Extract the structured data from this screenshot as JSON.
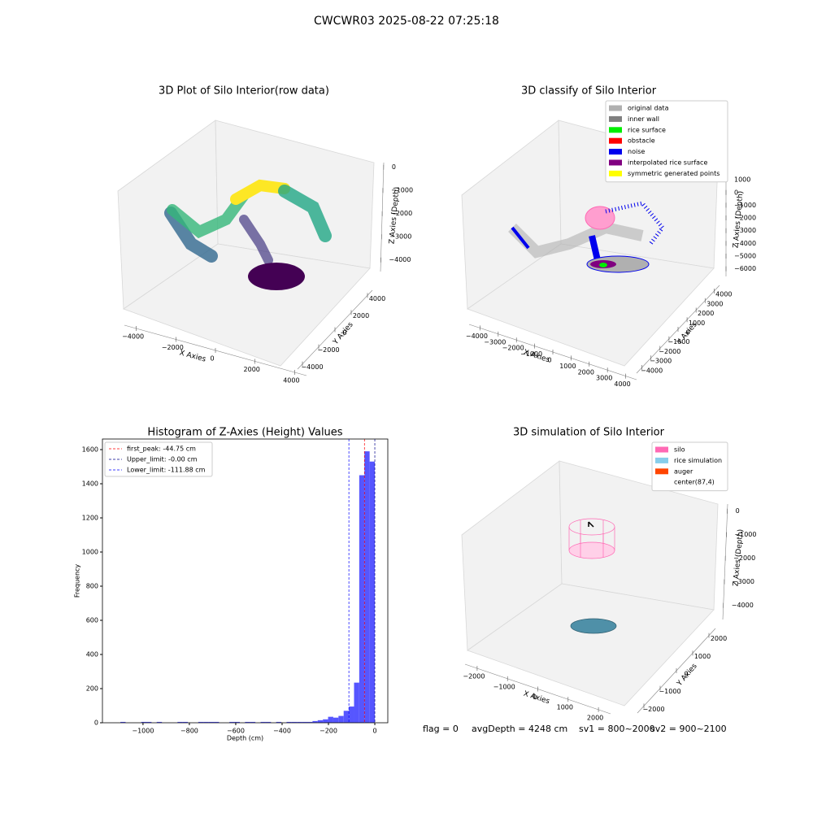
{
  "title": "CWCWR03 2025-08-22 07:25:18",
  "chart_data": [
    {
      "type": "scatter3d",
      "title": "3D Plot of Silo Interior(row data)",
      "xlabel": "X Axies",
      "ylabel": "Y Axies",
      "zlabel": "Z Axies (Depth)",
      "xlim": [
        -4600,
        4600
      ],
      "ylim": [
        -4600,
        4600
      ],
      "zlim": [
        -4500,
        200
      ],
      "xticks": [
        {
          "value": -4000,
          "label": "−4000"
        },
        {
          "value": -2000,
          "label": "−2000"
        },
        0,
        2000,
        4000
      ],
      "yticks": [
        {
          "value": -4000,
          "label": "−4000"
        },
        {
          "value": -2000,
          "label": "−2000"
        },
        0,
        2000,
        4000
      ],
      "zticks": [
        0,
        {
          "value": -1000,
          "label": "−1000"
        },
        {
          "value": -2000,
          "label": "−2000"
        },
        {
          "value": -3000,
          "label": "−3000"
        },
        {
          "value": -4000,
          "label": "−4000"
        }
      ]
    },
    {
      "type": "scatter3d",
      "title": "3D classify of Silo Interior",
      "xlabel": "X Axies",
      "ylabel": "Y Axies",
      "zlabel": "Z Axies (Depth)",
      "xlim": [
        -4600,
        4600
      ],
      "ylim": [
        -4600,
        4600
      ],
      "zlim": [
        -6600,
        1200
      ],
      "xticks": [
        {
          "value": -4000,
          "label": "−4000"
        },
        {
          "value": -3000,
          "label": "−3000"
        },
        {
          "value": -2000,
          "label": "−2000"
        },
        {
          "value": -1000,
          "label": "−1000"
        },
        0,
        1000,
        2000,
        3000,
        4000
      ],
      "yticks": [
        {
          "value": -4000,
          "label": "−4000"
        },
        {
          "value": -3000,
          "label": "−3000"
        },
        {
          "value": -2000,
          "label": "−2000"
        },
        {
          "value": -1000,
          "label": "−1000"
        },
        0,
        1000,
        2000,
        3000,
        4000
      ],
      "zticks": [
        1000,
        0,
        {
          "value": -1000,
          "label": "−1000"
        },
        {
          "value": -2000,
          "label": "−2000"
        },
        {
          "value": -3000,
          "label": "−3000"
        },
        {
          "value": -4000,
          "label": "−4000"
        },
        {
          "value": -5000,
          "label": "−5000"
        },
        {
          "value": -6000,
          "label": "−6000"
        }
      ],
      "legend": [
        {
          "name": "original data",
          "color": "#b0b0b0"
        },
        {
          "name": "inner wall",
          "color": "#808080"
        },
        {
          "name": "rice surface",
          "color": "#00ee00"
        },
        {
          "name": "obstacle",
          "color": "#ff0000"
        },
        {
          "name": "noise",
          "color": "#0000ee"
        },
        {
          "name": "interpolated rice surface",
          "color": "#800080"
        },
        {
          "name": "symmetric generated points",
          "color": "#ffff00"
        }
      ]
    },
    {
      "type": "histogram",
      "title": "Histogram of Z-Axies (Height) Values",
      "xlabel": "Depth (cm)",
      "ylabel": "Frequency",
      "color": "#4d4dff",
      "bins": [
        -1120,
        -1097.6,
        -1075.2,
        -1052.8,
        -1030.4,
        -1008,
        -985.6,
        -963.2,
        -940.8,
        -918.4,
        -896,
        -873.6,
        -851.2,
        -828.8,
        -806.4,
        -784,
        -761.6,
        -739.2,
        -716.8,
        -694.4,
        -672,
        -649.6,
        -627.2,
        -604.8,
        -582.4,
        -560,
        -537.6,
        -515.2,
        -492.8,
        -470.4,
        -448,
        -425.6,
        -403.2,
        -380.8,
        -358.4,
        -336,
        -313.6,
        -291.2,
        -268.8,
        -246.4,
        -224,
        -201.6,
        -179.2,
        -156.8,
        -134.4,
        -112,
        -89.6,
        -67.2,
        -44.8,
        -22.4,
        0
      ],
      "counts": [
        0,
        5,
        0,
        0,
        0,
        5,
        5,
        0,
        5,
        0,
        0,
        0,
        5,
        5,
        0,
        0,
        5,
        5,
        5,
        5,
        0,
        0,
        5,
        5,
        0,
        5,
        5,
        0,
        5,
        5,
        0,
        5,
        0,
        5,
        5,
        5,
        5,
        5,
        10,
        15,
        20,
        35,
        30,
        40,
        70,
        95,
        235,
        1450,
        1590,
        1530
      ],
      "xlim": [
        -1175,
        56
      ],
      "ylim": [
        0,
        1662
      ],
      "xticks": [
        {
          "value": -1000,
          "label": "−1000"
        },
        {
          "value": -800,
          "label": "−800"
        },
        {
          "value": -600,
          "label": "−600"
        },
        {
          "value": -400,
          "label": "−400"
        },
        {
          "value": -200,
          "label": "−200"
        },
        0
      ],
      "yticks": [
        0,
        200,
        400,
        600,
        800,
        1000,
        1200,
        1400,
        1600
      ],
      "lines": [
        {
          "name": "first_peak: -44.75 cm",
          "value": -44.75,
          "color": "#ff0000"
        },
        {
          "name": "Upper_limit: -0.00 cm",
          "value": 0,
          "color": "#00008b"
        },
        {
          "name": "Lower_limit: -111.88 cm",
          "value": -111.88,
          "color": "#0000ff"
        }
      ]
    },
    {
      "type": "scatter3d",
      "title": "3D simulation of Silo Interior",
      "xlabel": "X Axies",
      "ylabel": "Y Axies",
      "zlabel": "Z Axies (Depth)",
      "xlim": [
        -2400,
        2400
      ],
      "ylim": [
        -2400,
        2400
      ],
      "zlim": [
        -4600,
        300
      ],
      "xticks": [
        {
          "value": -2000,
          "label": "−2000"
        },
        {
          "value": -1000,
          "label": "−1000"
        },
        0,
        1000,
        2000
      ],
      "yticks": [
        {
          "value": -2000,
          "label": "−2000"
        },
        {
          "value": -1000,
          "label": "−1000"
        },
        0,
        1000,
        2000
      ],
      "zticks": [
        0,
        {
          "value": -1000,
          "label": "−1000"
        },
        {
          "value": -2000,
          "label": "−2000"
        },
        {
          "value": -3000,
          "label": "−3000"
        },
        {
          "value": -4000,
          "label": "−4000"
        }
      ],
      "legend": [
        {
          "name": "silo",
          "color": "#ff69b4"
        },
        {
          "name": "rice simulation",
          "color": "#87ceeb"
        },
        {
          "name": "auger",
          "color": "#ff4500"
        },
        {
          "name": "center(87,4)",
          "color": null
        }
      ]
    }
  ],
  "footer": [
    "flag = 0",
    "avgDepth = 4248 cm",
    "sv1 = 800~2000",
    "sv2 = 900~2100"
  ]
}
